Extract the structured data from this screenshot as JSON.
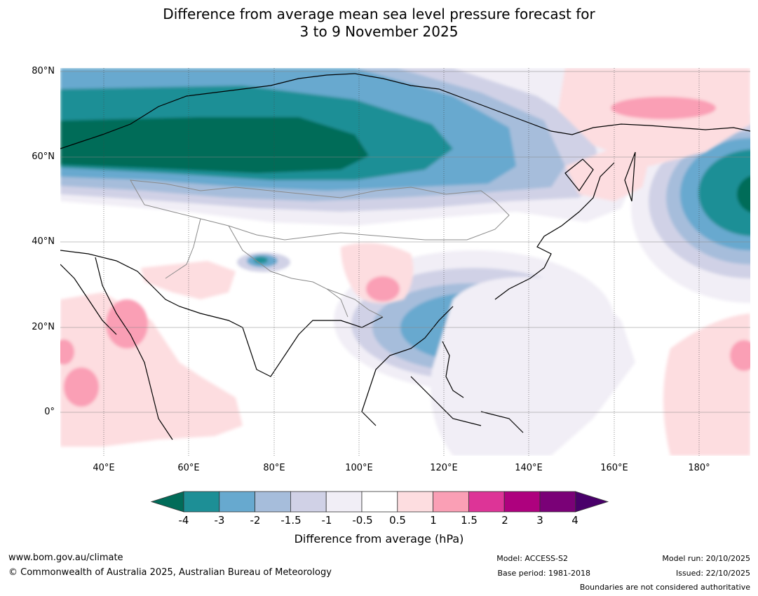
{
  "title_line1": "Difference from average mean sea level pressure forecast for",
  "title_line2": "3 to 9 November 2025",
  "lat_labels": [
    "80°N",
    "60°N",
    "40°N",
    "20°N",
    "0°"
  ],
  "lon_labels": [
    "40°E",
    "60°E",
    "80°E",
    "100°E",
    "120°E",
    "140°E",
    "160°E",
    "180°"
  ],
  "colorbar": {
    "ticks": [
      "-4",
      "-3",
      "-2",
      "-1.5",
      "-1",
      "-0.5",
      "0.5",
      "1",
      "1.5",
      "2",
      "3",
      "4"
    ],
    "colors": [
      "#1d8f96",
      "#67a9cf",
      "#a6bddb",
      "#d0d1e6",
      "#f1eef6",
      "#ffffff",
      "#fddde0",
      "#fa9fb5",
      "#dd3497",
      "#ae017e",
      "#7a0177"
    ],
    "low_extend_color": "#016c59",
    "high_extend_color": "#49006a",
    "label": "Difference from average (hPa)"
  },
  "footer": {
    "website": "www.bom.gov.au/climate",
    "copyright": "© Commonwealth of Australia 2025, Australian Bureau of Meteorology",
    "model": "Model: ACCESS-S2",
    "base_period": "Base period: 1981-2018",
    "model_run": "Model run: 20/10/2025",
    "issued": "Issued: 22/10/2025",
    "disclaimer": "Boundaries are not considered authoritative"
  }
}
